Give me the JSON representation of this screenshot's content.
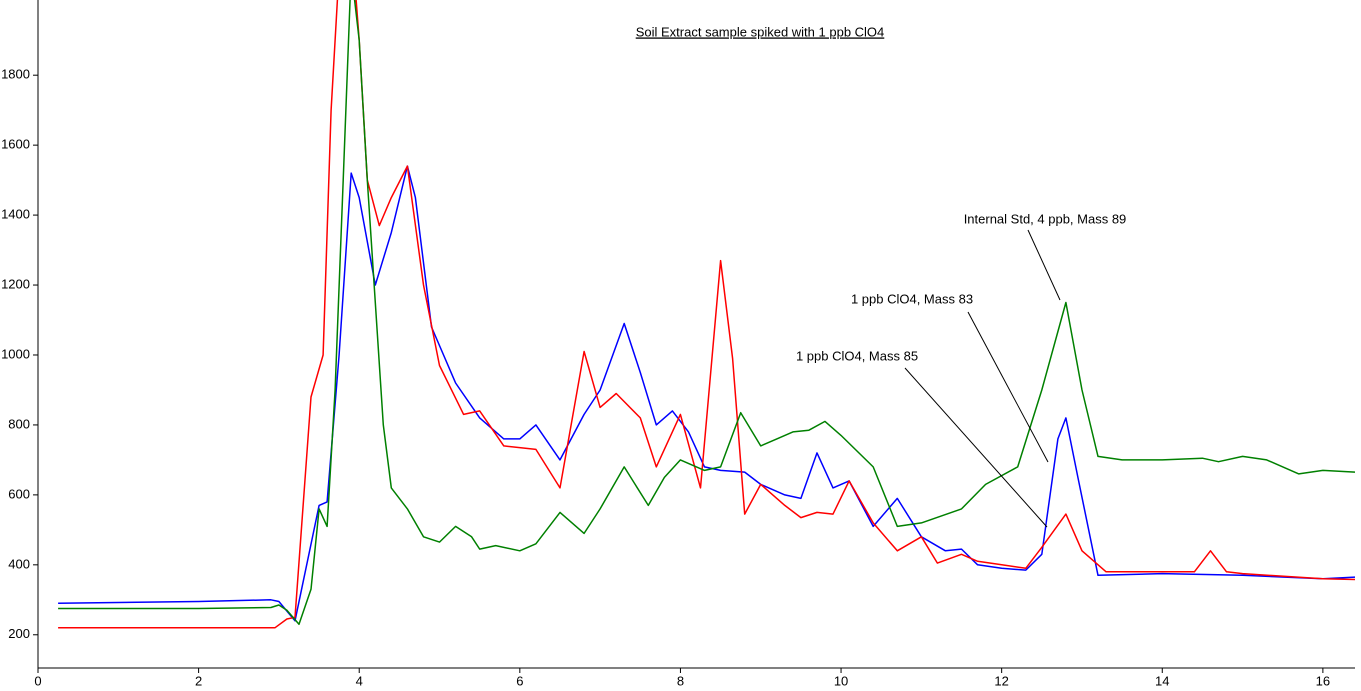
{
  "chart_data": {
    "type": "line",
    "title": "Soil Extract sample spiked with 1 ppb ClO4",
    "xlim": [
      0,
      16.4
    ],
    "ylim": [
      105,
      2015
    ],
    "xticks": [
      0,
      2,
      4,
      6,
      8,
      10,
      12,
      14,
      16
    ],
    "yticks": [
      200,
      400,
      600,
      800,
      1000,
      1200,
      1400,
      1600,
      1800
    ],
    "series": [
      {
        "name": "1 ppb ClO4, Mass 83",
        "color": "#0000ff",
        "x": [
          0.25,
          2,
          2.9,
          3.0,
          3.2,
          3.5,
          3.6,
          3.75,
          3.9,
          4.0,
          4.2,
          4.4,
          4.6,
          4.7,
          4.9,
          5.2,
          5.5,
          5.8,
          6.0,
          6.2,
          6.5,
          6.8,
          7.0,
          7.3,
          7.5,
          7.7,
          7.9,
          8.1,
          8.3,
          8.5,
          8.8,
          9.0,
          9.3,
          9.5,
          9.7,
          9.9,
          10.1,
          10.4,
          10.7,
          11.0,
          11.3,
          11.5,
          11.7,
          12.0,
          12.3,
          12.5,
          12.7,
          12.8,
          12.95,
          13.2,
          14.0,
          15.0,
          16.0,
          16.4
        ],
        "values": [
          290,
          295,
          300,
          295,
          240,
          570,
          580,
          1000,
          1520,
          1450,
          1200,
          1350,
          1540,
          1450,
          1080,
          920,
          820,
          760,
          760,
          800,
          700,
          830,
          900,
          1090,
          950,
          800,
          840,
          780,
          680,
          670,
          665,
          630,
          600,
          590,
          720,
          620,
          640,
          510,
          590,
          480,
          440,
          445,
          400,
          390,
          385,
          430,
          760,
          820,
          650,
          370,
          375,
          370,
          360,
          365
        ]
      },
      {
        "name": "1 ppb ClO4, Mass 85",
        "color": "#ff0000",
        "x": [
          0.25,
          2,
          2.95,
          3.1,
          3.2,
          3.4,
          3.55,
          3.65,
          3.75,
          3.9,
          4.0,
          4.1,
          4.25,
          4.4,
          4.6,
          4.8,
          5.0,
          5.3,
          5.5,
          5.8,
          6.2,
          6.5,
          6.8,
          7.0,
          7.2,
          7.5,
          7.7,
          8.0,
          8.25,
          8.5,
          8.65,
          8.8,
          9.0,
          9.3,
          9.5,
          9.7,
          9.9,
          10.1,
          10.4,
          10.7,
          11.0,
          11.2,
          11.5,
          11.7,
          12.0,
          12.3,
          12.5,
          12.8,
          13.0,
          13.3,
          14.0,
          14.4,
          14.6,
          14.8,
          15.0,
          16.0,
          16.4
        ],
        "values": [
          220,
          220,
          220,
          245,
          250,
          880,
          1000,
          1700,
          2100,
          2200,
          1900,
          1500,
          1370,
          1450,
          1540,
          1200,
          970,
          830,
          840,
          740,
          730,
          620,
          1010,
          850,
          890,
          820,
          680,
          830,
          620,
          1270,
          990,
          545,
          630,
          570,
          535,
          550,
          545,
          640,
          520,
          440,
          480,
          405,
          430,
          410,
          400,
          390,
          450,
          545,
          440,
          380,
          380,
          380,
          440,
          380,
          375,
          360,
          358
        ]
      },
      {
        "name": "Internal Std, 4 ppb, Mass 89",
        "color": "#008000",
        "x": [
          0.25,
          1,
          2,
          2.9,
          3.0,
          3.1,
          3.25,
          3.4,
          3.5,
          3.6,
          3.7,
          3.8,
          3.9,
          4.0,
          4.1,
          4.2,
          4.3,
          4.4,
          4.6,
          4.8,
          5.0,
          5.2,
          5.4,
          5.5,
          5.7,
          6.0,
          6.2,
          6.5,
          6.8,
          7.0,
          7.3,
          7.6,
          7.8,
          8.0,
          8.3,
          8.5,
          8.75,
          9.0,
          9.2,
          9.4,
          9.6,
          9.8,
          10.0,
          10.4,
          10.7,
          11.0,
          11.5,
          11.8,
          12.2,
          12.5,
          12.8,
          13.0,
          13.2,
          13.5,
          14.0,
          14.5,
          14.7,
          15.0,
          15.3,
          15.7,
          16.0,
          16.4
        ],
        "values": [
          275,
          275,
          275,
          278,
          285,
          270,
          230,
          330,
          560,
          510,
          900,
          1500,
          2100,
          1900,
          1500,
          1150,
          800,
          620,
          560,
          480,
          465,
          510,
          480,
          445,
          455,
          440,
          460,
          550,
          490,
          560,
          680,
          570,
          650,
          700,
          670,
          680,
          835,
          740,
          760,
          780,
          785,
          810,
          770,
          680,
          510,
          520,
          560,
          630,
          680,
          900,
          1150,
          900,
          710,
          700,
          700,
          705,
          695,
          710,
          700,
          660,
          670,
          665
        ]
      }
    ]
  }
}
